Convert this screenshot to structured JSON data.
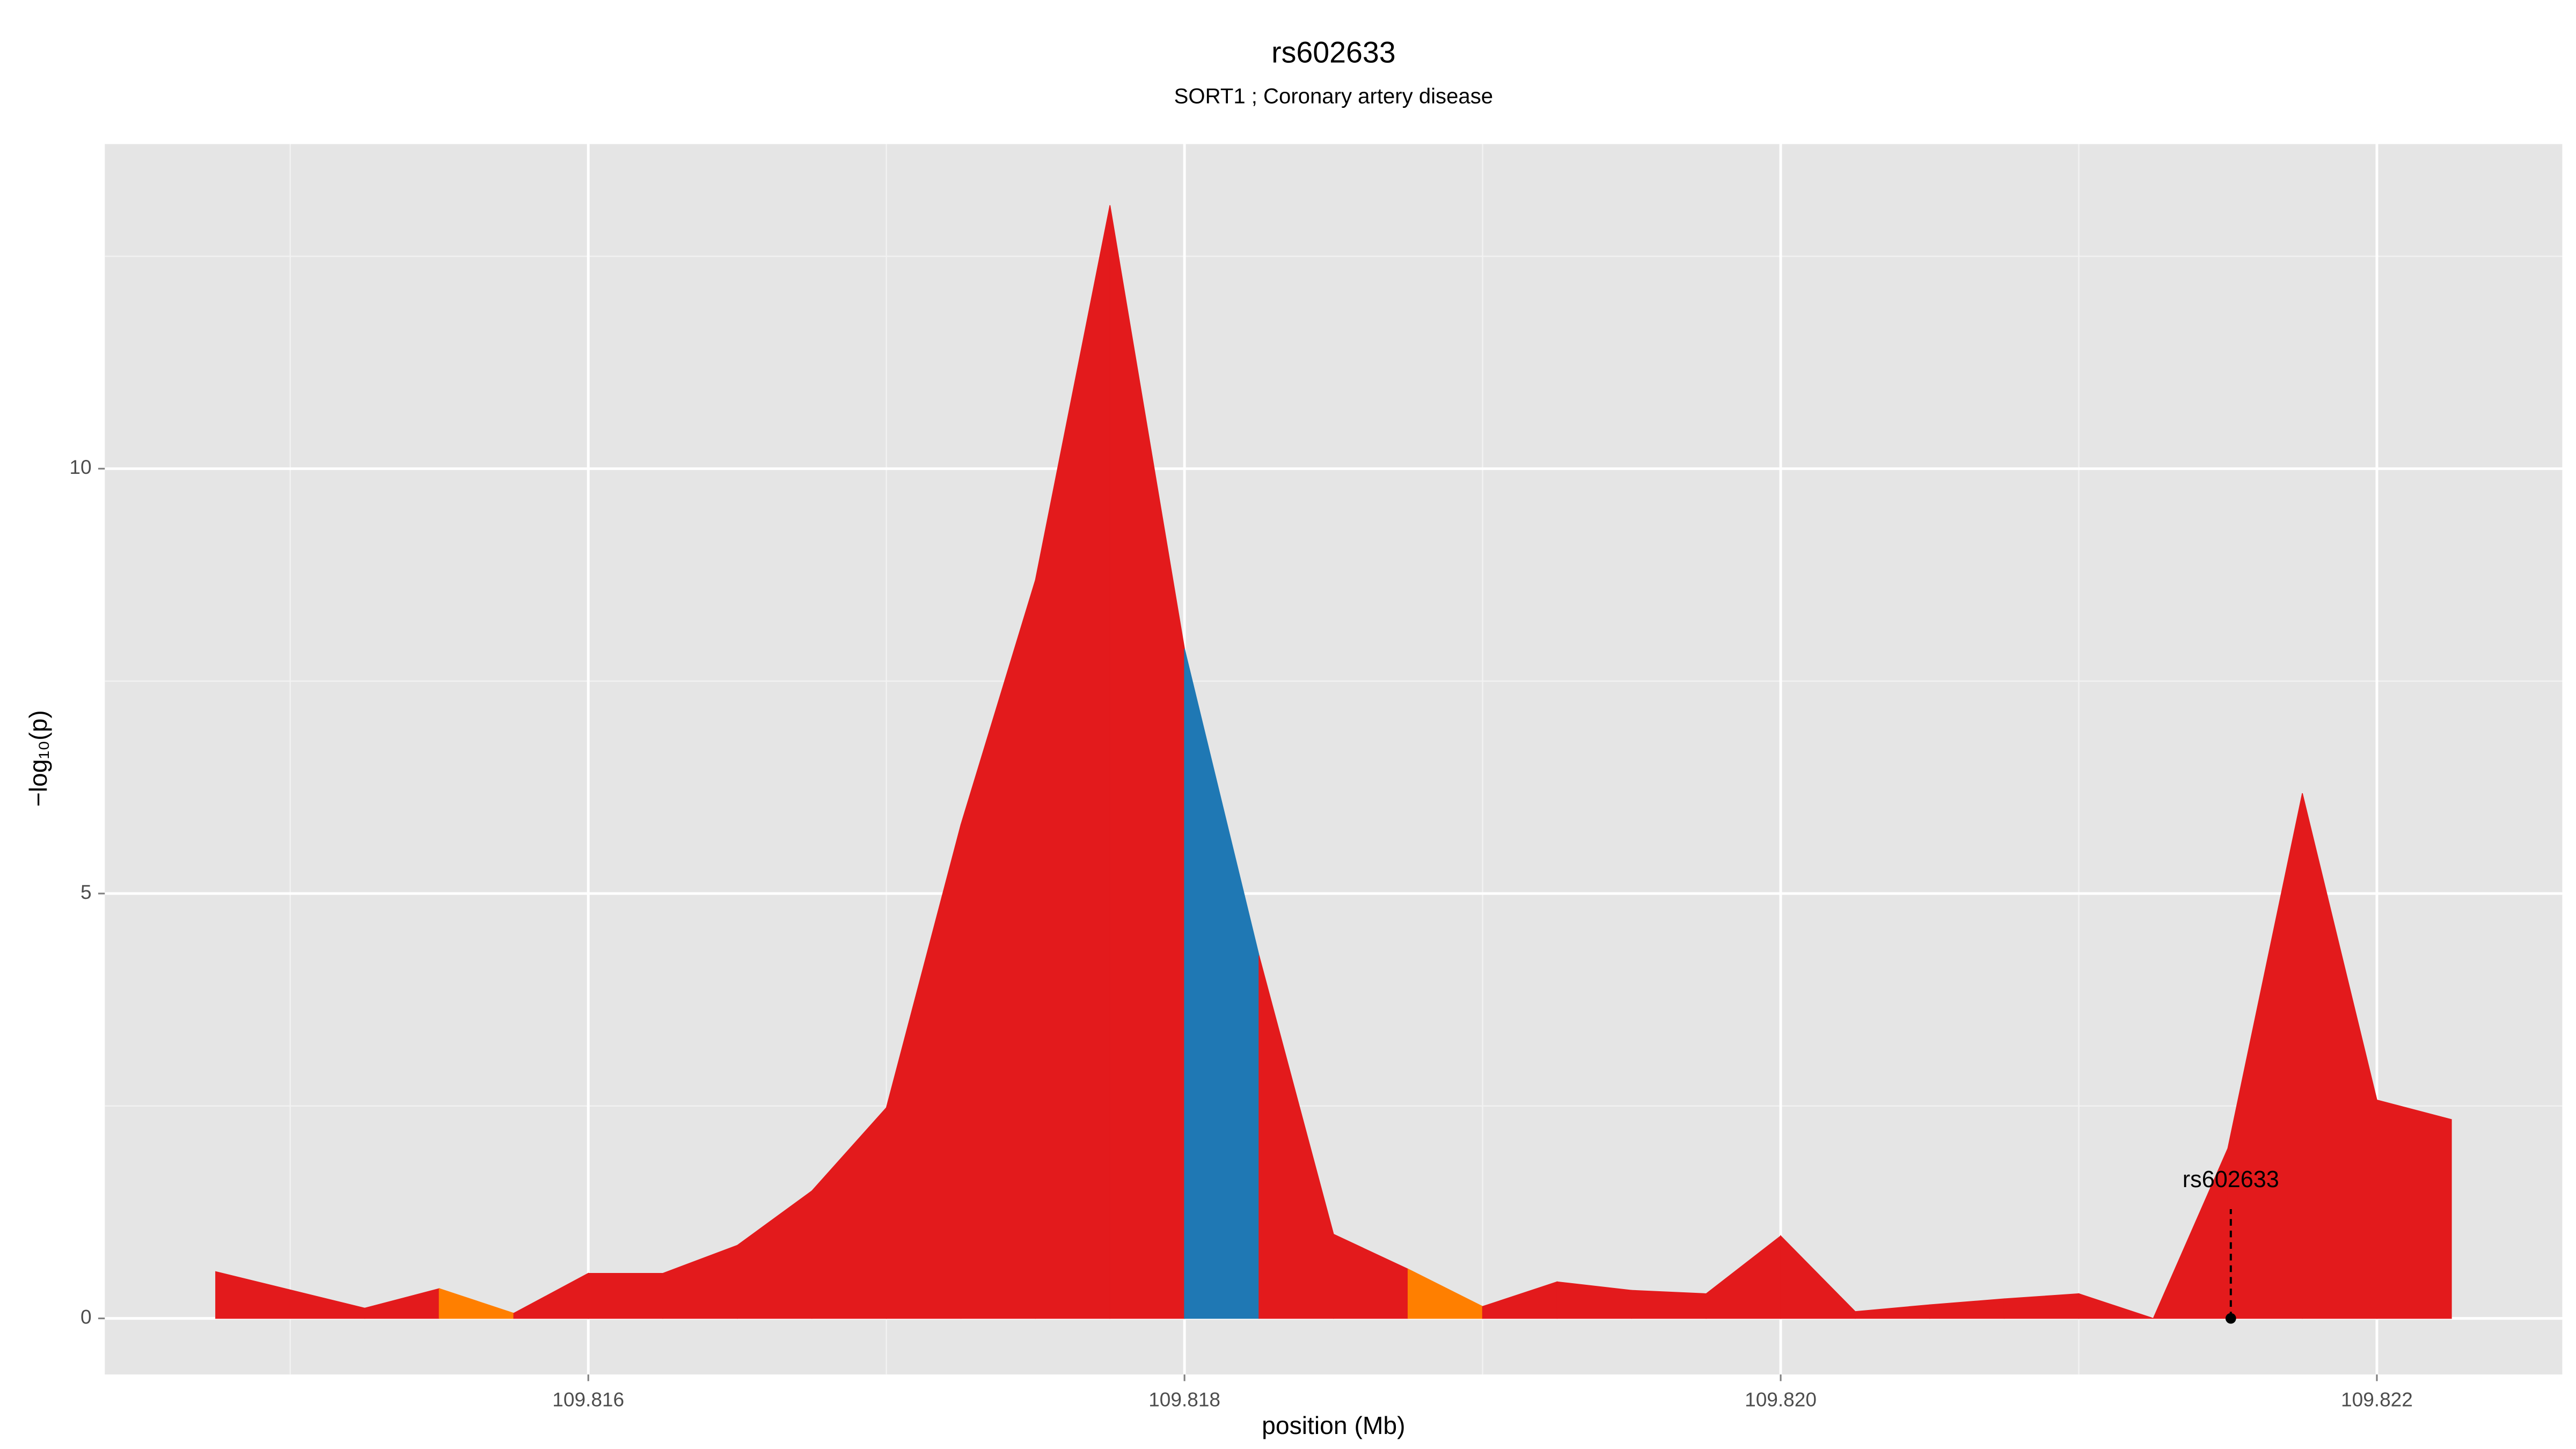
{
  "chart_data": {
    "type": "area",
    "title": "rs602633",
    "subtitle": "SORT1 ; Coronary artery disease",
    "xlabel": "position (Mb)",
    "ylabel": "−log₁₀(p)",
    "x": [
      109.81475,
      109.81525,
      109.8155,
      109.81575,
      109.816,
      109.81625,
      109.8165,
      109.81675,
      109.817,
      109.81725,
      109.8175,
      109.81775,
      109.818,
      109.81825,
      109.8185,
      109.81875,
      109.819,
      109.81925,
      109.8195,
      109.81975,
      109.82,
      109.82025,
      109.8205,
      109.82075,
      109.821,
      109.82125,
      109.8215,
      109.82175,
      109.822,
      109.82225
    ],
    "values": [
      0.55,
      0.12,
      0.35,
      0.06,
      0.53,
      0.53,
      0.86,
      1.5,
      2.48,
      5.81,
      8.69,
      13.1,
      7.88,
      4.27,
      0.99,
      0.58,
      0.14,
      0.43,
      0.33,
      0.29,
      0.97,
      0.08,
      0.16,
      0.23,
      0.29,
      0,
      2.0,
      6.18,
      2.57,
      2.34
    ],
    "segment_colors": [
      "#e31a1c",
      "#e31a1c",
      "#ff7f00",
      "#e31a1c",
      "#e31a1c",
      "#e31a1c",
      "#e31a1c",
      "#e31a1c",
      "#e31a1c",
      "#e31a1c",
      "#e31a1c",
      "#e31a1c",
      "#1f78b4",
      "#e31a1c",
      "#e31a1c",
      "#ff7f00",
      "#e31a1c",
      "#e31a1c",
      "#e31a1c",
      "#e31a1c",
      "#e31a1c",
      "#e31a1c",
      "#e31a1c",
      "#e31a1c",
      "#e31a1c",
      "#e31a1c",
      "#e31a1c",
      "#e31a1c",
      "#e31a1c"
    ],
    "xlim": [
      109.814378,
      109.822622
    ],
    "ylim": [
      -0.66,
      13.82
    ],
    "xticks": [
      109.816,
      109.818,
      {
        "value": 109.82,
        "label": "109.820"
      },
      109.822
    ],
    "yticks": [
      0,
      5,
      10
    ],
    "x_minor_ticks": [
      109.815,
      109.817,
      109.819,
      109.821
    ],
    "y_minor_ticks": [
      2.5,
      7.5,
      12.5
    ],
    "grid": true,
    "annotation": {
      "text": "rs602633",
      "x": 109.82151,
      "y": 0
    }
  }
}
